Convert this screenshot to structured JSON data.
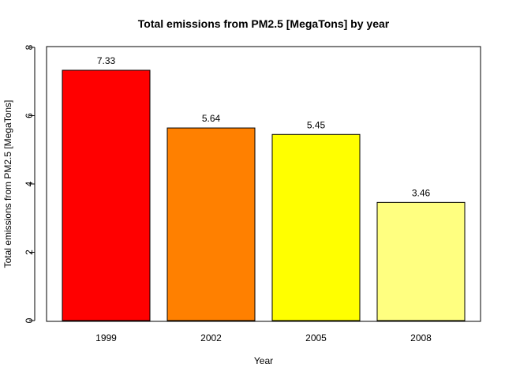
{
  "chart_data": {
    "type": "bar",
    "title": "Total emissions from PM2.5 [MegaTons] by year",
    "xlabel": "Year",
    "ylabel": "Total emissions from PM2.5 [MegaTons]",
    "categories": [
      "1999",
      "2002",
      "2005",
      "2008"
    ],
    "values": [
      7.33,
      5.64,
      5.45,
      3.46
    ],
    "value_labels": [
      "7.33",
      "5.64",
      "5.45",
      "3.46"
    ],
    "colors": [
      "#FF0000",
      "#FF8000",
      "#FFFF00",
      "#FFFF80"
    ],
    "ylim": [
      0,
      8
    ],
    "yticks": [
      "0",
      "2",
      "4",
      "6",
      "8"
    ],
    "grid": false,
    "legend": "none"
  }
}
